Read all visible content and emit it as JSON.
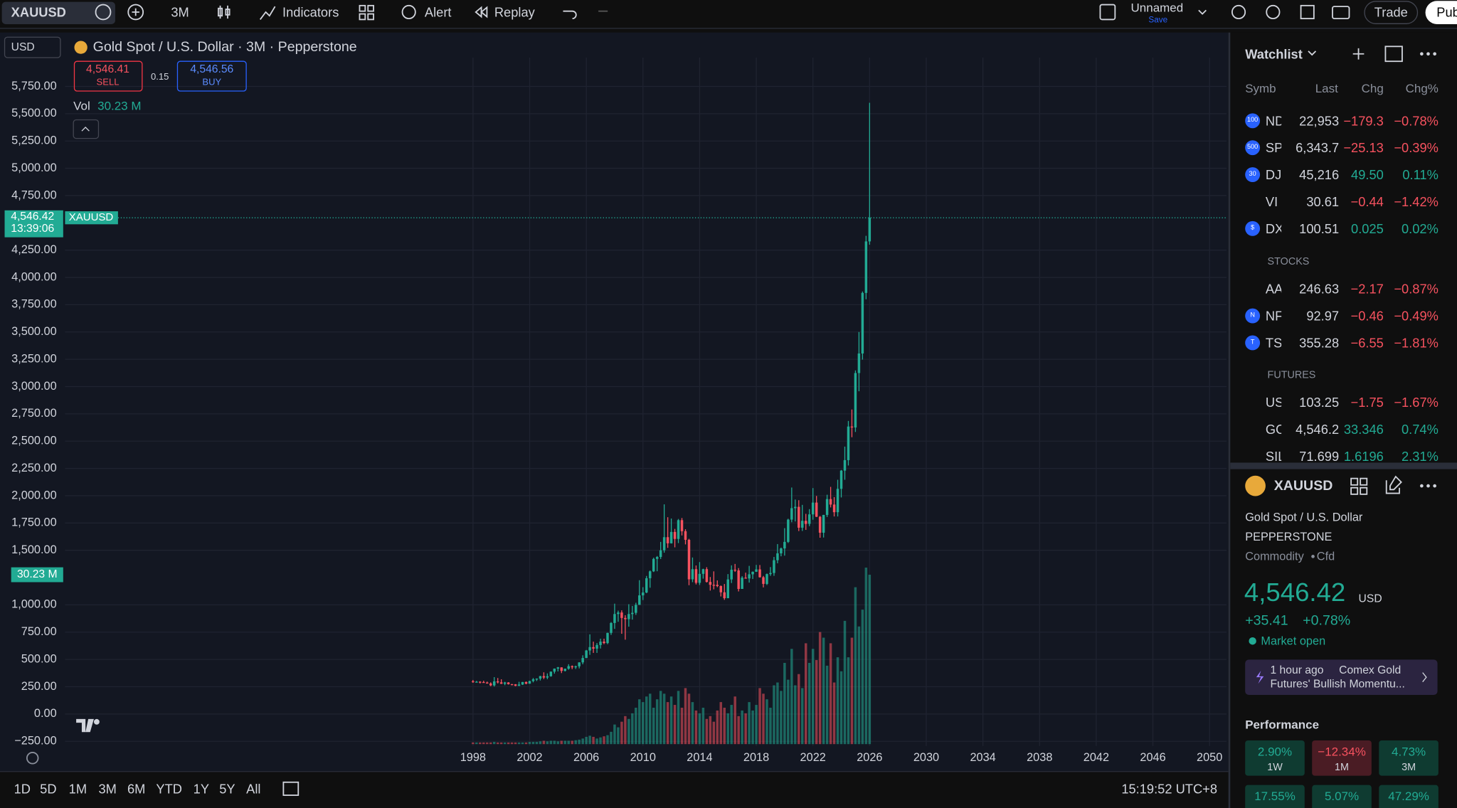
{
  "toolbar": {
    "symbol": "XAUUSD",
    "interval": "3M",
    "indicators": "Indicators",
    "alert": "Alert",
    "replay": "Replay",
    "layout_name": "Unnamed",
    "save": "Save",
    "trade": "Trade",
    "publish": "Pub"
  },
  "chart_header": {
    "currency": "USD",
    "title": "Gold Spot / U.S. Dollar · 3M · Pepperstone",
    "sell_price": "4,546.41",
    "sell": "SELL",
    "spread": "0.15",
    "buy_price": "4,546.56",
    "buy": "BUY",
    "vol_label": "Vol"
  },
  "chart_data": {
    "type": "candlestick",
    "x": [
      1998,
      1998.25,
      1998.5,
      1998.75,
      1999,
      1999.25,
      1999.5,
      1999.75,
      2000,
      2000.25,
      2000.5,
      2000.75,
      2001,
      2001.25,
      2001.5,
      2001.75,
      2002,
      2002.25,
      2002.5,
      2002.75,
      2003,
      2003.25,
      2003.5,
      2003.75,
      2004,
      2004.25,
      2004.5,
      2004.75,
      2005,
      2005.25,
      2005.5,
      2005.75,
      2006,
      2006.25,
      2006.5,
      2006.75,
      2007,
      2007.25,
      2007.5,
      2007.75,
      2008,
      2008.25,
      2008.5,
      2008.75,
      2009,
      2009.25,
      2009.5,
      2009.75,
      2010,
      2010.25,
      2010.5,
      2010.75,
      2011,
      2011.25,
      2011.5,
      2011.75,
      2012,
      2012.25,
      2012.5,
      2012.75,
      2013,
      2013.25,
      2013.5,
      2013.75,
      2014,
      2014.25,
      2014.5,
      2014.75,
      2015,
      2015.25,
      2015.5,
      2015.75,
      2016,
      2016.25,
      2016.5,
      2016.75,
      2017,
      2017.25,
      2017.5,
      2017.75,
      2018,
      2018.25,
      2018.5,
      2018.75,
      2019,
      2019.25,
      2019.5,
      2019.75,
      2020,
      2020.25,
      2020.5,
      2020.75,
      2021,
      2021.25,
      2021.5,
      2021.75,
      2022,
      2022.25,
      2022.5,
      2022.75,
      2023,
      2023.25,
      2023.5,
      2023.75,
      2024,
      2024.25,
      2024.5,
      2024.75,
      2025,
      2025.25,
      2025.5,
      2025.75,
      2026
    ],
    "open": [
      300,
      296,
      296,
      293,
      288,
      280,
      262,
      299,
      290,
      277,
      289,
      273,
      272,
      258,
      270,
      293,
      278,
      302,
      318,
      324,
      347,
      334,
      346,
      388,
      416,
      427,
      395,
      415,
      438,
      428,
      437,
      473,
      513,
      582,
      613,
      599,
      632,
      663,
      650,
      743,
      834,
      916,
      930,
      880,
      869,
      916,
      927,
      1000,
      1087,
      1113,
      1244,
      1307,
      1421,
      1439,
      1500,
      1620,
      1564,
      1668,
      1604,
      1776,
      1675,
      1596,
      1234,
      1327,
      1202,
      1284,
      1327,
      1210,
      1184,
      1183,
      1172,
      1115,
      1061,
      1233,
      1322,
      1316,
      1146,
      1249,
      1242,
      1280,
      1303,
      1325,
      1253,
      1192,
      1282,
      1292,
      1409,
      1472,
      1517,
      1577,
      1781,
      1886,
      1898,
      1707,
      1770,
      1742,
      1829,
      1937,
      1807,
      1661,
      1824,
      1969,
      1919,
      1849,
      2063,
      2230,
      2326,
      2634,
      2625,
      3124,
      3303,
      3858,
      4330
    ],
    "high": [
      312,
      303,
      300,
      305,
      297,
      290,
      338,
      330,
      318,
      295,
      292,
      276,
      274,
      295,
      294,
      298,
      305,
      330,
      326,
      350,
      382,
      372,
      390,
      417,
      431,
      428,
      415,
      456,
      445,
      443,
      474,
      538,
      587,
      730,
      663,
      650,
      690,
      690,
      745,
      842,
      1011,
      947,
      950,
      905,
      1006,
      990,
      1019,
      1226,
      1162,
      1265,
      1315,
      1432,
      1447,
      1577,
      1921,
      1803,
      1791,
      1696,
      1787,
      1796,
      1693,
      1605,
      1434,
      1361,
      1392,
      1331,
      1345,
      1255,
      1307,
      1224,
      1178,
      1191,
      1282,
      1362,
      1375,
      1337,
      1263,
      1295,
      1357,
      1306,
      1366,
      1365,
      1265,
      1287,
      1346,
      1439,
      1557,
      1525,
      1703,
      1789,
      2075,
      1965,
      1959,
      1916,
      1834,
      1877,
      2070,
      1998,
      1814,
      1825,
      2009,
      2081,
      1987,
      2146,
      2236,
      2450,
      2685,
      2790,
      3148,
      3500,
      3871,
      4381,
      5600
    ],
    "low": [
      286,
      288,
      280,
      286,
      278,
      255,
      252,
      280,
      275,
      264,
      270,
      264,
      255,
      257,
      266,
      272,
      277,
      290,
      302,
      307,
      320,
      319,
      342,
      370,
      390,
      375,
      390,
      406,
      411,
      413,
      418,
      456,
      513,
      542,
      560,
      560,
      600,
      640,
      640,
      725,
      780,
      845,
      735,
      681,
      800,
      865,
      908,
      1000,
      1044,
      1107,
      1157,
      1301,
      1308,
      1420,
      1478,
      1522,
      1562,
      1527,
      1566,
      1636,
      1554,
      1180,
      1208,
      1187,
      1182,
      1240,
      1205,
      1131,
      1142,
      1162,
      1077,
      1046,
      1061,
      1200,
      1302,
      1123,
      1146,
      1240,
      1204,
      1237,
      1302,
      1250,
      1160,
      1182,
      1266,
      1266,
      1381,
      1445,
      1451,
      1567,
      1757,
      1764,
      1676,
      1677,
      1687,
      1721,
      1780,
      1805,
      1615,
      1617,
      1805,
      1893,
      1810,
      1810,
      1984,
      2146,
      2277,
      2536,
      2584,
      2957,
      3247,
      3800,
      4300
    ],
    "close": [
      296,
      296,
      293,
      288,
      280,
      262,
      299,
      290,
      277,
      289,
      273,
      272,
      258,
      270,
      293,
      278,
      302,
      318,
      324,
      347,
      334,
      346,
      388,
      416,
      427,
      395,
      415,
      438,
      428,
      437,
      473,
      513,
      582,
      613,
      599,
      632,
      663,
      650,
      743,
      834,
      916,
      930,
      880,
      869,
      916,
      927,
      1000,
      1087,
      1113,
      1244,
      1307,
      1421,
      1439,
      1500,
      1620,
      1564,
      1668,
      1604,
      1776,
      1675,
      1596,
      1234,
      1327,
      1202,
      1284,
      1327,
      1210,
      1184,
      1183,
      1172,
      1115,
      1061,
      1233,
      1322,
      1316,
      1146,
      1249,
      1242,
      1280,
      1303,
      1325,
      1253,
      1192,
      1282,
      1292,
      1409,
      1472,
      1517,
      1577,
      1781,
      1886,
      1898,
      1707,
      1770,
      1742,
      1829,
      1937,
      1807,
      1661,
      1824,
      1969,
      1919,
      1849,
      2063,
      2230,
      2326,
      2634,
      2625,
      3124,
      3303,
      3858,
      4330,
      4546
    ],
    "volume": [
      0.3,
      0.3,
      0.3,
      0.3,
      0.3,
      0.3,
      0.4,
      0.3,
      0.3,
      0.3,
      0.3,
      0.3,
      0.3,
      0.3,
      0.3,
      0.3,
      0.4,
      0.4,
      0.4,
      0.5,
      0.6,
      0.5,
      0.6,
      0.6,
      0.5,
      0.6,
      0.6,
      0.6,
      0.6,
      0.7,
      0.8,
      1.0,
      1.3,
      1.5,
      1.3,
      1.0,
      1.2,
      1.4,
      1.6,
      2.2,
      3.5,
      3.0,
      4.0,
      5.0,
      4.5,
      5.5,
      6.5,
      8.0,
      7.5,
      8.5,
      9.0,
      6.5,
      8.0,
      9.5,
      9.0,
      7.5,
      8.5,
      7.0,
      9.5,
      6.5,
      10.0,
      9.0,
      7.5,
      6.0,
      5.5,
      6.5,
      4.5,
      5.0,
      4.0,
      6.0,
      7.5,
      6.5,
      5.5,
      7.0,
      8.5,
      5.0,
      6.0,
      5.5,
      7.5,
      6.0,
      7.0,
      10.0,
      9.0,
      8.0,
      6.5,
      10.5,
      11.0,
      9.5,
      14.5,
      11.5,
      17.0,
      10.5,
      12.5,
      10.0,
      18.0,
      14.5,
      17.0,
      15.0,
      20.0,
      19.0,
      14.0,
      18.0,
      11.0,
      15.5,
      13.0,
      22.0,
      15.5,
      19.0,
      28.0,
      21.0,
      24.0,
      31.5,
      30.23
    ],
    "volume_last_label": "30.23 M",
    "last_price": {
      "value": 4546.42,
      "label": "4,546.42"
    },
    "last_time": "13:39:06",
    "symbol_tag": "XAUUSD",
    "up_color": "#22ab94",
    "down_color": "#f7525f",
    "xlim": [
      1969.2,
      2051.2
    ],
    "xticks": [
      1998,
      2002,
      2006,
      2010,
      2014,
      2018,
      2022,
      2026,
      2030,
      2034,
      2038,
      2042,
      2046,
      2050
    ],
    "ylim": [
      -293,
      6014
    ],
    "yticks": [
      {
        "value": -250,
        "label": "−250.00"
      },
      {
        "value": 0,
        "label": "0.00"
      },
      {
        "value": 250,
        "label": "250.00"
      },
      {
        "value": 500,
        "label": "500.00"
      },
      {
        "value": 750,
        "label": "750.00"
      },
      {
        "value": 1000,
        "label": "1,000.00"
      },
      {
        "value": 1500,
        "label": "1,500.00"
      },
      {
        "value": 1750,
        "label": "1,750.00"
      },
      {
        "value": 2000,
        "label": "2,000.00"
      },
      {
        "value": 2250,
        "label": "2,250.00"
      },
      {
        "value": 2500,
        "label": "2,500.00"
      },
      {
        "value": 2750,
        "label": "2,750.00"
      },
      {
        "value": 3000,
        "label": "3,000.00"
      },
      {
        "value": 3250,
        "label": "3,250.00"
      },
      {
        "value": 3500,
        "label": "3,500.00"
      },
      {
        "value": 3750,
        "label": "3,750.00"
      },
      {
        "value": 4000,
        "label": "4,000.00"
      },
      {
        "value": 4250,
        "label": "4,250.00"
      },
      {
        "value": 4750,
        "label": "4,750.00"
      },
      {
        "value": 5000,
        "label": "5,000.00"
      },
      {
        "value": 5250,
        "label": "5,250.00"
      },
      {
        "value": 5500,
        "label": "5,500.00"
      },
      {
        "value": 5750,
        "label": "5,750.00"
      }
    ],
    "grid": true
  },
  "range_bar": {
    "ranges": [
      "1D",
      "5D",
      "1M",
      "3M",
      "6M",
      "YTD",
      "1Y",
      "5Y",
      "All"
    ],
    "clock": "15:19:52 UTC+8"
  },
  "watchlist": {
    "title": "Watchlist",
    "columns": [
      "Symb",
      "Last",
      "Chg",
      "Chg%"
    ],
    "rows": [
      {
        "badge": "100",
        "symbol": "ND",
        "last": "22,953",
        "chg": "−179.3",
        "chg_pct": "−0.78%"
      },
      {
        "badge": "500",
        "symbol": "SP",
        "last": "6,343.7",
        "chg": "−25.13",
        "chg_pct": "−0.39%"
      },
      {
        "badge": "30",
        "symbol": "DJ",
        "last": "45,216",
        "chg": "49.50",
        "chg_pct": "0.11%"
      },
      {
        "symbol": "VI",
        "last": "30.61",
        "chg": "−0.44",
        "chg_pct": "−1.42%"
      },
      {
        "badge": "$",
        "symbol": "DXY",
        "last": "100.51",
        "chg": "0.025",
        "chg_pct": "0.02%"
      }
    ],
    "sections": [
      {
        "name": "STOCKS",
        "rows": [
          {
            "symbol": "AA",
            "last": "246.63",
            "chg": "−2.17",
            "chg_pct": "−0.87%"
          },
          {
            "badge": "N",
            "symbol": "NF",
            "last": "92.97",
            "chg": "−0.46",
            "chg_pct": "−0.49%"
          },
          {
            "badge": "T",
            "symbol": "TS",
            "last": "355.28",
            "chg": "−6.55",
            "chg_pct": "−1.81%"
          }
        ]
      },
      {
        "name": "FUTURES",
        "rows": [
          {
            "symbol": "USO",
            "last": "103.25",
            "chg": "−1.75",
            "chg_pct": "−1.67%"
          },
          {
            "symbol": "GOL",
            "last": "4,546.2",
            "chg": "33.346",
            "chg_pct": "0.74%"
          },
          {
            "symbol": "SILV",
            "last": "71.699",
            "chg": "1.6196",
            "chg_pct": "2.31%"
          }
        ]
      }
    ]
  },
  "details": {
    "symbol": "XAUUSD",
    "name": "Gold Spot / U.S. Dollar",
    "exchange": "PEPPERSTONE",
    "category": "Commodity",
    "sub_type": "Cfd",
    "price": "4,546.42",
    "currency": "USD",
    "change": "+35.41",
    "change_pct": "+0.78%",
    "status": "Market open",
    "news_time": "1 hour ago",
    "news_source": "Comex Gold",
    "news_headline": "Futures' Bullish Momentu...",
    "performance_title": "Performance",
    "performance": [
      {
        "value": "2.90%",
        "period": "1W"
      },
      {
        "value": "−12.34%",
        "period": "1M"
      },
      {
        "value": "4.73%",
        "period": "3M"
      },
      {
        "value": "17.55%"
      },
      {
        "value": "5.07%"
      },
      {
        "value": "47.29%"
      }
    ]
  }
}
